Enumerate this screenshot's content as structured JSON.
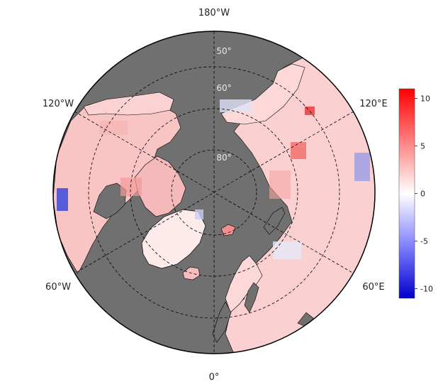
{
  "map": {
    "projection": "north-polar-stereographic",
    "longitude_labels": [
      {
        "id": "lon-180w",
        "text": "180°W"
      },
      {
        "id": "lon-120w",
        "text": "120°W"
      },
      {
        "id": "lon-120e",
        "text": "120°E"
      },
      {
        "id": "lon-60w",
        "text": "60°W"
      },
      {
        "id": "lon-60e",
        "text": "60°E"
      },
      {
        "id": "lon-0",
        "text": "0°"
      }
    ],
    "latitude_labels": [
      {
        "id": "lat-50",
        "text": "50°"
      },
      {
        "id": "lat-60",
        "text": "60°"
      },
      {
        "id": "lat-80",
        "text": "80°"
      }
    ],
    "colors": {
      "ocean_mask": "#707070",
      "coastline": "#000000",
      "graticule": "#000000",
      "warm": "#e8001a",
      "neutral": "#ffffff",
      "cool": "#0a1fcc"
    }
  },
  "colorbar": {
    "min": -11,
    "max": 11,
    "ticks": [
      {
        "value": 10,
        "label": "10"
      },
      {
        "value": 5,
        "label": "5"
      },
      {
        "value": 0,
        "label": "0"
      },
      {
        "value": -5,
        "label": "-5"
      },
      {
        "value": -10,
        "label": "-10"
      }
    ]
  }
}
